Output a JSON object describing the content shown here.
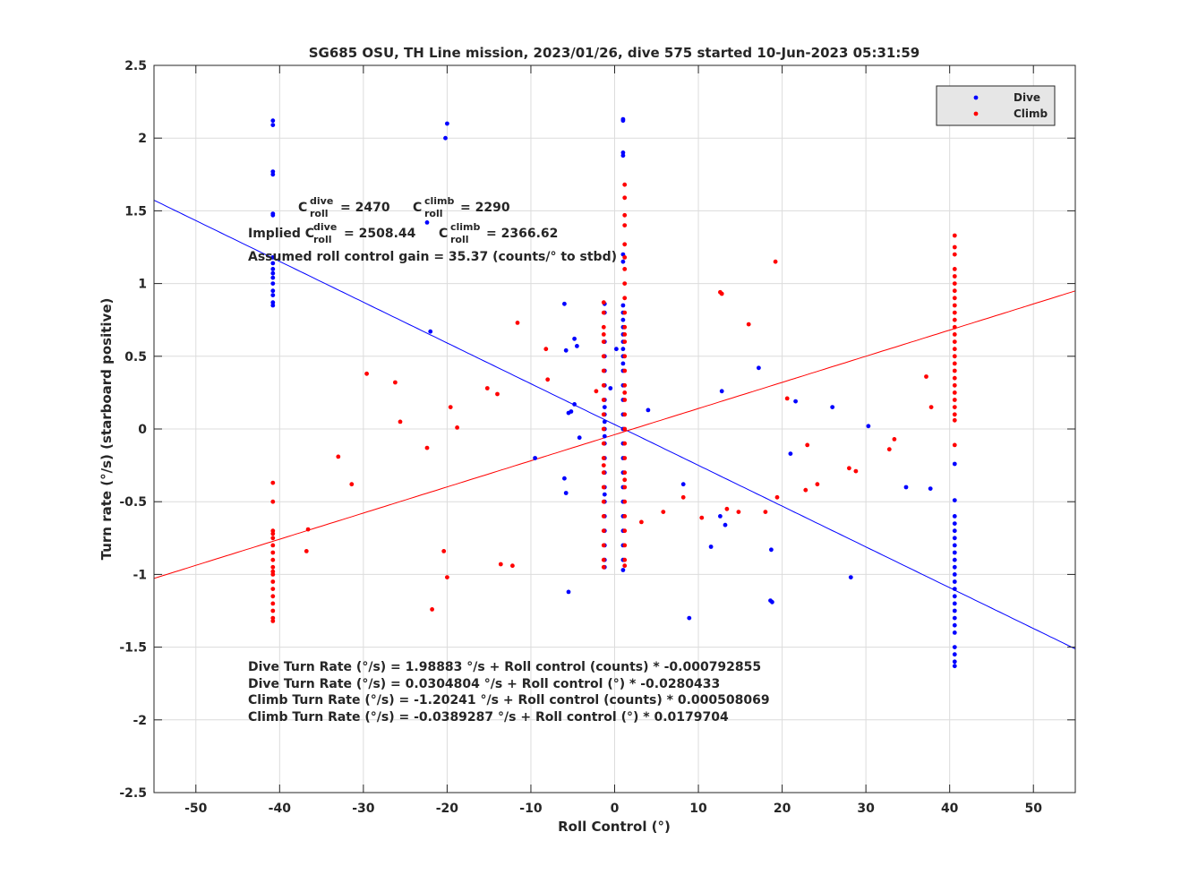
{
  "chart_data": {
    "type": "scatter",
    "title": "SG685 OSU, TH Line mission, 2023/01/26, dive 575 started 10-Jun-2023 05:31:59",
    "xlabel": "Roll Control (°)",
    "ylabel": "Turn rate (°/s) (starboard positive)",
    "xlim": [
      -55,
      55
    ],
    "ylim": [
      -2.5,
      2.5
    ],
    "xticks": [
      -50,
      -40,
      -30,
      -20,
      -10,
      0,
      10,
      20,
      30,
      40,
      50
    ],
    "yticks": [
      -2.5,
      -2,
      -1.5,
      -1,
      -0.5,
      0,
      0.5,
      1,
      1.5,
      2,
      2.5
    ],
    "grid": true,
    "legend": {
      "position": "top-right",
      "entries": [
        "Dive",
        "Climb"
      ]
    },
    "colors": {
      "dive": "#0000ff",
      "climb": "#ff0000",
      "axes": "#262626",
      "grid": "#dcdcdc"
    },
    "annotations": {
      "c_label": "C",
      "dive_sup": "dive",
      "climb_sup": "climb",
      "roll_sub": "roll",
      "c_dive_value": "= 2470",
      "c_climb_value": "= 2290",
      "implied_prefix": "Implied C",
      "implied_dive_value": "= 2508.44",
      "implied_climb_value": "= 2366.62",
      "gain": "Assumed roll control gain = 35.37 (counts/° to stbd)",
      "eq1": "Dive Turn Rate (°/s) = 1.98883 °/s + Roll control (counts) * -0.000792855",
      "eq2": "Dive Turn Rate (°/s) = 0.0304804 °/s + Roll control (°) * -0.0280433",
      "eq3": "Climb Turn Rate (°/s) = -1.20241 °/s + Roll control (counts) * 0.000508069",
      "eq4": "Climb Turn Rate (°/s) = -0.0389287 °/s + Roll control (°) * 0.0179704"
    },
    "fit_lines": [
      {
        "name": "Dive",
        "intercept": 0.0304804,
        "slope": -0.0280433
      },
      {
        "name": "Climb",
        "intercept": -0.0389287,
        "slope": 0.0179704
      }
    ],
    "series": [
      {
        "name": "Dive",
        "x": [
          -40.8,
          -40.8,
          -40.8,
          -40.8,
          -40.8,
          -40.8,
          -40.8,
          -40.8,
          -40.8,
          -40.8,
          -40.8,
          -40.8,
          -40.8,
          -40.8,
          -40.8,
          -40.8,
          -20.2,
          -20.0,
          -22.4,
          -22.0,
          1.0,
          1.0,
          1.0,
          1.0,
          1.0,
          1.0,
          1.0,
          1.0,
          1.0,
          1.0,
          1.0,
          1.0,
          1.0,
          1.0,
          1.0,
          1.0,
          1.0,
          1.0,
          1.0,
          1.0,
          1.0,
          1.0,
          1.0,
          1.0,
          1.0,
          1.0,
          1.0,
          1.0,
          1.0,
          1.0,
          -1.2,
          -1.2,
          -1.2,
          -1.2,
          -1.2,
          -1.2,
          -1.2,
          -1.2,
          -1.2,
          -1.2,
          -1.2,
          -1.2,
          -1.2,
          -1.2,
          -1.2,
          -1.2,
          -1.2,
          -1.2,
          -1.2,
          -1.2,
          -1.2,
          -1.2,
          -1.2,
          -6.0,
          -5.8,
          -4.5,
          -4.8,
          -4.8,
          -5.2,
          -5.5,
          -6.0,
          -5.8,
          -4.2,
          -0.5,
          -9.5,
          -5.5,
          4.0,
          0.2,
          8.2,
          8.9,
          11.5,
          12.6,
          12.8,
          13.2,
          17.2,
          18.6,
          18.8,
          18.7,
          21.0,
          21.6,
          26.0,
          28.2,
          30.3,
          34.8,
          37.7,
          40.6,
          40.6,
          40.6,
          40.6,
          40.6,
          40.6,
          40.6,
          40.6,
          40.6,
          40.6,
          40.6,
          40.6,
          40.6,
          40.6,
          40.6,
          40.6,
          40.6,
          40.6,
          40.6,
          40.6,
          40.6,
          40.6,
          40.6
        ],
        "y": [
          2.12,
          2.09,
          1.77,
          1.75,
          1.48,
          1.47,
          1.14,
          1.1,
          1.07,
          1.04,
          1.0,
          0.95,
          0.92,
          0.87,
          0.85,
          1.18,
          2.0,
          2.1,
          1.42,
          0.67,
          2.13,
          2.12,
          1.9,
          1.88,
          1.2,
          1.15,
          0.85,
          0.7,
          0.65,
          0.6,
          0.55,
          0.5,
          0.45,
          0.4,
          0.3,
          0.2,
          0.1,
          0.0,
          -0.1,
          -0.2,
          -0.3,
          -0.4,
          -0.5,
          -0.6,
          -0.7,
          -0.8,
          -0.9,
          -0.97,
          0.8,
          0.75,
          0.86,
          0.8,
          0.6,
          0.5,
          0.4,
          0.3,
          0.2,
          0.1,
          0.05,
          0.0,
          -0.05,
          -0.1,
          -0.2,
          -0.3,
          -0.4,
          -0.45,
          -0.5,
          -0.6,
          -0.7,
          -0.8,
          -0.9,
          -0.95,
          0.15,
          0.86,
          0.54,
          0.57,
          0.62,
          0.17,
          0.12,
          0.11,
          -0.34,
          -0.44,
          -0.06,
          0.28,
          -0.2,
          -1.12,
          0.13,
          0.55,
          -0.38,
          -1.3,
          -0.81,
          -0.6,
          0.26,
          -0.66,
          0.42,
          -1.18,
          -1.19,
          -0.83,
          -0.17,
          0.19,
          0.15,
          -1.02,
          0.02,
          -0.4,
          -0.41,
          -0.24,
          -0.49,
          -0.6,
          -0.65,
          -0.7,
          -0.75,
          -0.8,
          -0.85,
          -0.9,
          -0.95,
          -1.0,
          -1.05,
          -1.1,
          -1.15,
          -1.2,
          -1.25,
          -1.3,
          -1.35,
          -1.4,
          -1.5,
          -1.55,
          -1.6,
          -1.63
        ]
      },
      {
        "name": "Climb",
        "x": [
          -40.8,
          -40.8,
          -40.8,
          -40.8,
          -40.8,
          -40.8,
          -40.8,
          -40.8,
          -40.8,
          -40.8,
          -40.8,
          -40.8,
          -40.8,
          -40.8,
          -40.8,
          -40.8,
          -40.8,
          -40.8,
          -36.6,
          -36.8,
          -33.0,
          -31.4,
          -29.6,
          -26.2,
          -25.6,
          -22.4,
          -21.8,
          -20.4,
          -20.0,
          -19.6,
          -18.8,
          -15.2,
          -14.0,
          -13.6,
          -12.2,
          -11.6,
          -8.2,
          -8.0,
          -2.2,
          1.2,
          1.2,
          1.2,
          1.2,
          1.2,
          1.2,
          1.2,
          1.2,
          1.2,
          1.2,
          1.2,
          1.2,
          1.2,
          1.2,
          1.2,
          1.2,
          1.2,
          1.2,
          1.2,
          1.2,
          1.2,
          1.2,
          1.2,
          1.2,
          1.2,
          1.2,
          1.2,
          1.2,
          1.2,
          1.2,
          1.2,
          -1.3,
          -1.3,
          -1.3,
          -1.3,
          -1.3,
          -1.3,
          -1.3,
          -1.3,
          -1.3,
          -1.3,
          -1.3,
          -1.3,
          -1.3,
          -1.3,
          -1.3,
          -1.3,
          -1.3,
          -1.3,
          -1.3,
          -1.3,
          -1.3,
          -1.3,
          3.2,
          5.8,
          8.2,
          10.4,
          12.6,
          12.8,
          13.4,
          14.8,
          16.0,
          18.0,
          19.2,
          19.4,
          20.6,
          22.8,
          23.0,
          24.2,
          28.0,
          28.8,
          32.8,
          33.4,
          37.2,
          37.8,
          40.6,
          40.6,
          40.6,
          40.6,
          40.6,
          40.6,
          40.6,
          40.6,
          40.6,
          40.6,
          40.6,
          40.6,
          40.6,
          40.6,
          40.6,
          40.6,
          40.6,
          40.6,
          40.6,
          40.6,
          40.6,
          40.6,
          40.6,
          40.6,
          40.6,
          40.6
        ],
        "y": [
          -0.37,
          -0.5,
          -0.7,
          -0.75,
          -0.8,
          -0.85,
          -0.9,
          -0.95,
          -1.0,
          -1.05,
          -1.1,
          -1.15,
          -1.2,
          -1.25,
          -1.3,
          -1.32,
          -0.72,
          -0.98,
          -0.69,
          -0.84,
          -0.19,
          -0.38,
          0.38,
          0.32,
          0.05,
          -0.13,
          -1.24,
          -0.84,
          -1.02,
          0.15,
          0.01,
          0.28,
          0.24,
          -0.93,
          -0.94,
          0.73,
          0.55,
          0.34,
          0.26,
          1.68,
          1.59,
          1.47,
          1.4,
          1.27,
          1.18,
          1.1,
          1.0,
          0.9,
          0.8,
          0.7,
          0.6,
          0.5,
          0.4,
          0.3,
          0.2,
          0.1,
          0.0,
          -0.1,
          -0.2,
          -0.3,
          -0.4,
          -0.5,
          -0.6,
          -0.7,
          -0.8,
          -0.9,
          -0.94,
          0.65,
          -0.35,
          0.25,
          0.87,
          0.8,
          0.7,
          0.6,
          0.5,
          0.4,
          0.3,
          0.2,
          0.1,
          0.0,
          -0.1,
          -0.2,
          -0.3,
          -0.4,
          -0.5,
          -0.6,
          -0.7,
          -0.8,
          -0.9,
          -0.95,
          0.65,
          -0.25,
          -0.64,
          -0.57,
          -0.47,
          -0.61,
          0.94,
          0.93,
          -0.55,
          -0.57,
          0.72,
          -0.57,
          1.15,
          -0.47,
          0.21,
          -0.42,
          -0.11,
          -0.38,
          -0.27,
          -0.29,
          -0.14,
          -0.07,
          0.36,
          0.15,
          1.33,
          1.25,
          1.2,
          1.1,
          1.05,
          1.0,
          0.95,
          0.9,
          0.85,
          0.8,
          0.75,
          0.7,
          0.65,
          0.6,
          0.55,
          0.5,
          0.45,
          0.4,
          0.35,
          0.3,
          0.25,
          0.2,
          0.15,
          0.1,
          -0.11,
          0.06
        ]
      }
    ]
  }
}
